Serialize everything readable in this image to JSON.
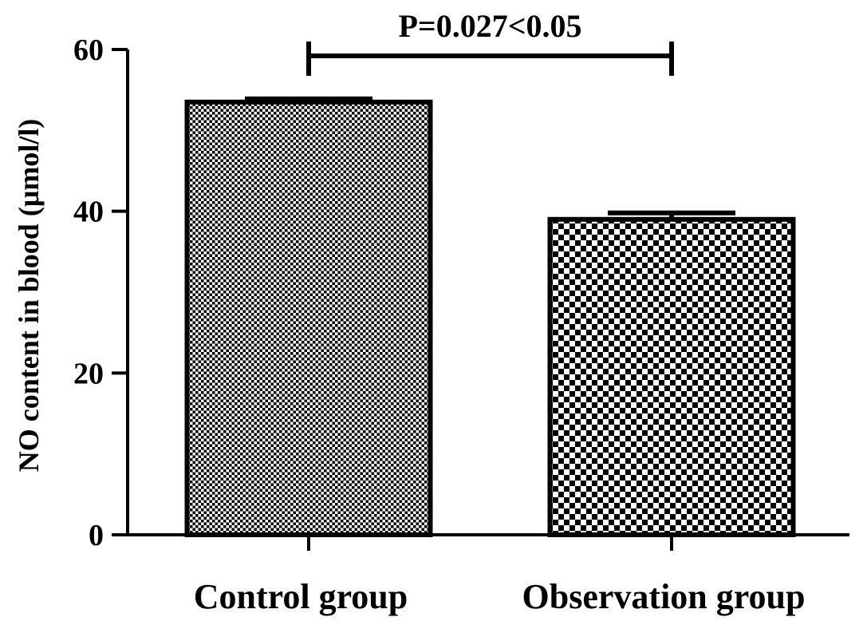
{
  "chart_data": {
    "type": "bar",
    "title": "",
    "xlabel": "",
    "ylabel": "NO content in blood (μmol/l)",
    "categories": [
      "Control group",
      "Observation group"
    ],
    "values": [
      53.5,
      39.0
    ],
    "error_upper": [
      53.9,
      39.8
    ],
    "ylim": [
      0,
      60
    ],
    "yticks": [
      0,
      20,
      40,
      60
    ],
    "ytick_labels": [
      "0",
      "20",
      "40",
      "60"
    ],
    "grid": false,
    "legend": "none",
    "annotations": [
      {
        "text": "P=0.027<0.05",
        "between": [
          "Control group",
          "Observation group"
        ]
      }
    ],
    "patterns": [
      "fine-checker",
      "coarse-checker"
    ],
    "colors": {
      "bar_fill": "#ffffff",
      "bar_pattern": "#000000",
      "axis": "#000000"
    }
  }
}
